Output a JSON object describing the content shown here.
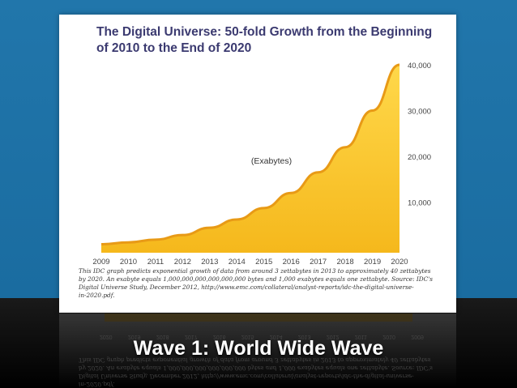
{
  "slide": {
    "title": "Wave 1: World Wide Wave"
  },
  "colors": {
    "slide_blue": "#1f6fa3",
    "title_purple": "#3b3a70",
    "area_fill_top": "#ffd84a",
    "area_fill_bottom": "#f5b81c",
    "area_edge": "#e89a16"
  },
  "chart_data": {
    "type": "area",
    "title": "The Digital Universe: 50-fold Growth from the Beginning of 2010 to the End of 2020",
    "annotation": "(Exabytes)",
    "x": [
      "2009",
      "2010",
      "2011",
      "2012",
      "2013",
      "2014",
      "2015",
      "2016",
      "2017",
      "2018",
      "2019",
      "2020"
    ],
    "values": [
      800,
      1200,
      1800,
      2800,
      4400,
      6200,
      8700,
      12000,
      16500,
      22000,
      30000,
      40000
    ],
    "y_ticks": [
      "10,000",
      "20,000",
      "30,000",
      "40,000"
    ],
    "y_tick_values": [
      10000,
      20000,
      30000,
      40000
    ],
    "ylim": [
      0,
      40000
    ],
    "y_axis_side": "right",
    "grid": false
  },
  "caption": {
    "lines": [
      "This IDC graph predicts exponential growth of data from around 3 zettabytes in 2013 to approximately 40 zettabytes",
      "by 2020. An exabyte equals 1,000,000,000,000,000,000 bytes and 1,000 exabytes equals one zettabyte. Source: IDC's",
      "Digital Universe Study, December 2012, http://www.emc.com/collateral/analyst-reports/idc-the-digital-universe-",
      "in-2020.pdf."
    ]
  }
}
